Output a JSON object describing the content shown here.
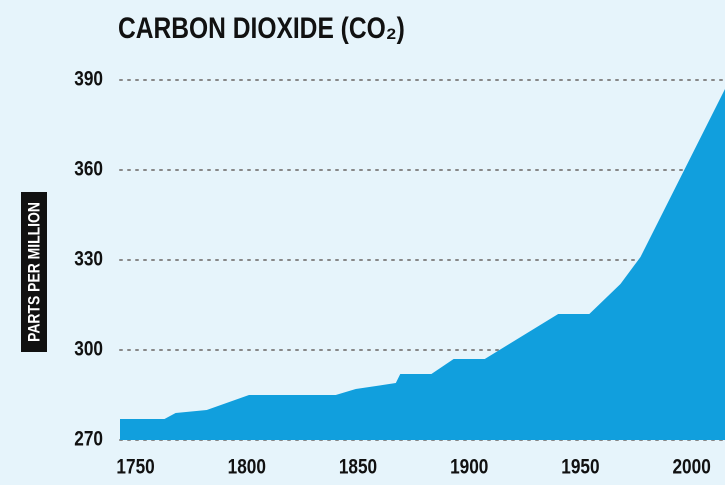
{
  "chart_data": {
    "type": "area",
    "title": "CARBON DIOXIDE (CO₂)",
    "y_label": "PARTS PER MILLION",
    "x": [
      1743,
      1763,
      1768,
      1782,
      1801,
      1840,
      1849,
      1867,
      1869,
      1883,
      1893,
      1907,
      1940,
      1954,
      1968,
      1977,
      2015
    ],
    "values": [
      277,
      277,
      279,
      280,
      285,
      285,
      287,
      289,
      292,
      292,
      297,
      297,
      312,
      312,
      322,
      331,
      387
    ],
    "color": "#119fdd",
    "xlim": [
      1743,
      2015
    ],
    "xticks": [
      1750,
      1800,
      1850,
      1900,
      1950,
      2000
    ],
    "ylim": [
      270,
      400
    ],
    "yticks": [
      270,
      300,
      330,
      360,
      390
    ],
    "grid": true
  }
}
